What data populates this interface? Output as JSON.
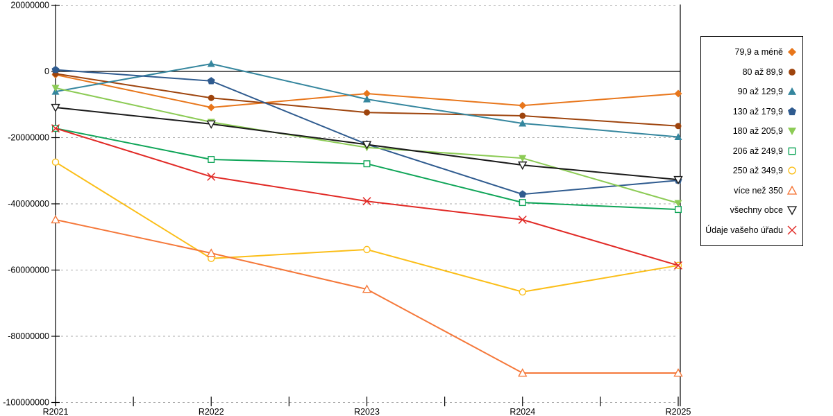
{
  "chart_data": {
    "type": "line",
    "title": "",
    "xlabel": "",
    "ylabel": "",
    "categories": [
      "R2021",
      "R2022",
      "R2023",
      "R2024",
      "R2025"
    ],
    "y_axis": {
      "min": -100000000,
      "max": 20000000,
      "step": 20000000,
      "tick_labels": [
        "20000000",
        "0",
        "-20000000",
        "-40000000",
        "-60000000",
        "-80000000",
        "-100000000"
      ],
      "zero_line": "solid-black",
      "grid": "dashed-gray"
    },
    "legend_position": "right-outside",
    "series": [
      {
        "name": "79,9 a méně",
        "color": "#E8761B",
        "marker": "diamond",
        "filled": true,
        "values": [
          -1000000,
          -10900000,
          -6700000,
          -10300000,
          -6700000
        ]
      },
      {
        "name": "80 až 89,9",
        "color": "#9E440D",
        "marker": "circle",
        "filled": true,
        "values": [
          -700000,
          -8000000,
          -12400000,
          -13400000,
          -16500000
        ]
      },
      {
        "name": "90 až 129,9",
        "color": "#35869E",
        "marker": "triangle-up",
        "filled": true,
        "values": [
          -6100000,
          2300000,
          -8400000,
          -15700000,
          -19800000
        ]
      },
      {
        "name": "130 až 179,9",
        "color": "#2F5B8F",
        "marker": "pentagon",
        "filled": true,
        "values": [
          500000,
          -2900000,
          -22000000,
          -37100000,
          -32900000
        ]
      },
      {
        "name": "180 až 205,9",
        "color": "#8CCB55",
        "marker": "triangle-down",
        "filled": true,
        "values": [
          -5000000,
          -15300000,
          -23000000,
          -26200000,
          -39800000
        ]
      },
      {
        "name": "206 až 249,9",
        "color": "#0FA558",
        "marker": "square",
        "filled": false,
        "values": [
          -17200000,
          -26600000,
          -27900000,
          -39600000,
          -41700000
        ]
      },
      {
        "name": "250 až 349,9",
        "color": "#FBBE18",
        "marker": "circle",
        "filled": false,
        "values": [
          -27400000,
          -56500000,
          -53800000,
          -66600000,
          -58600000
        ]
      },
      {
        "name": "více než 350",
        "color": "#F5783A",
        "marker": "triangle-up",
        "filled": false,
        "values": [
          -44800000,
          -54900000,
          -65800000,
          -91100000,
          -91100000
        ]
      },
      {
        "name": "všechny obce",
        "color": "#1A1A1A",
        "marker": "triangle-down",
        "filled": false,
        "values": [
          -10900000,
          -15900000,
          -22100000,
          -28300000,
          -32700000
        ]
      },
      {
        "name": "Údaje vašeho úřadu",
        "color": "#E12A26",
        "marker": "x",
        "filled": false,
        "values": [
          -17200000,
          -31800000,
          -39200000,
          -44800000,
          -58600000
        ]
      }
    ]
  },
  "colors": {
    "grid": "#ABABAB",
    "axis": "#000000",
    "background": "#FFFFFF"
  }
}
